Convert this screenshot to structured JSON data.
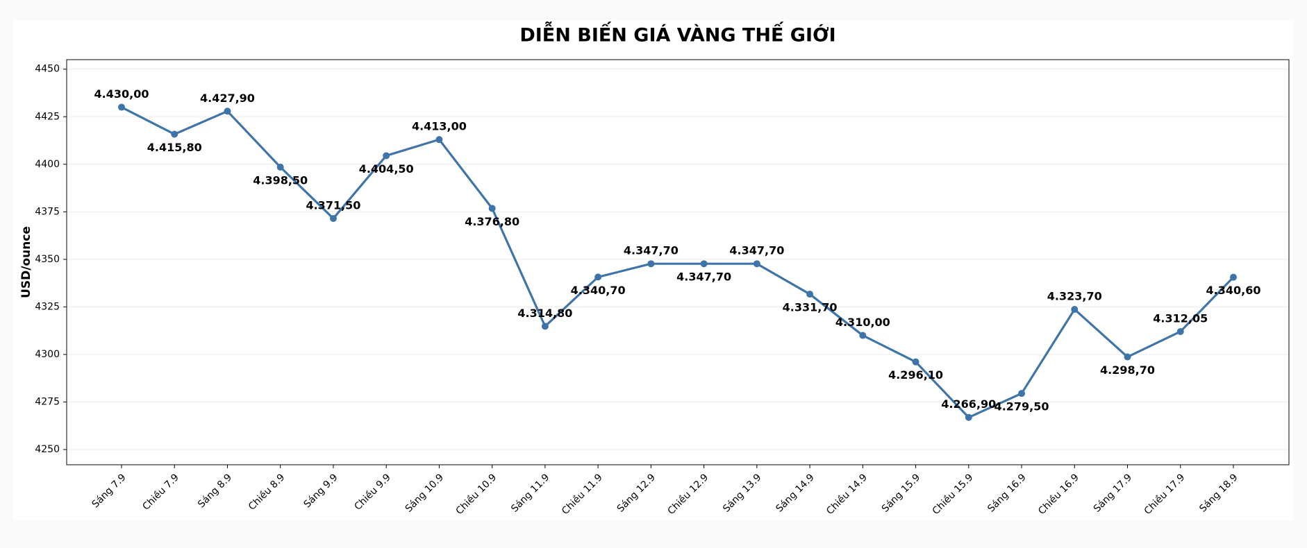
{
  "chart_data": {
    "type": "line",
    "title": "DIỄN BIẾN GIÁ VÀNG THẾ GIỚI",
    "y_label": "USD/ounce",
    "categories": [
      "Sáng 7.9",
      "Chiều 7.9",
      "Sáng 8.9",
      "Chiều 8.9",
      "Sáng 9.9",
      "Chiều 9.9",
      "Sáng 10.9",
      "Chiều 10.9",
      "Sáng 11.9",
      "Chiều 11.9",
      "Sáng 12.9",
      "Chiều 12.9",
      "Sáng 13.9",
      "Sáng 14.9",
      "Chiều 14.9",
      "Sáng 15.9",
      "Chiều 15.9",
      "Sáng 16.9",
      "Chiều 16.9",
      "Sáng 17.9",
      "Chiều 17.9",
      "Sáng 18.9"
    ],
    "series": [
      {
        "name": "Giá vàng",
        "color": "#3f74a8",
        "values": [
          4430.0,
          4415.8,
          4427.9,
          4398.5,
          4371.5,
          4404.5,
          4413.0,
          4376.8,
          4314.8,
          4340.7,
          4347.7,
          4347.7,
          4347.7,
          4331.7,
          4310.0,
          4296.1,
          4266.9,
          4279.5,
          4323.7,
          4298.7,
          4312.05,
          4340.6
        ],
        "value_labels": [
          "4.430,00",
          "4.415,80",
          "4.427,90",
          "4.398,50",
          "4.371,50",
          "4.404,50",
          "4.413,00",
          "4.376,80",
          "4.314,80",
          "4.340,70",
          "4.347,70",
          "4.347,70",
          "4.347,70",
          "4.331,70",
          "4.310,00",
          "4.296,10",
          "4.266,90",
          "4.279,50",
          "4.323,70",
          "4.298,70",
          "4.312,05",
          "4.340,60"
        ]
      }
    ],
    "ylim": [
      4242,
      4455
    ],
    "yticks": [
      4250,
      4275,
      4300,
      4325,
      4350,
      4375,
      4400,
      4425,
      4450
    ],
    "grid": true
  }
}
